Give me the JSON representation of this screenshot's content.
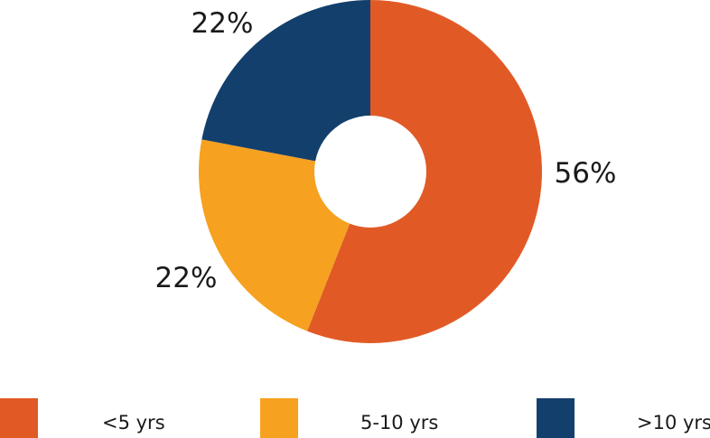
{
  "chart_data": {
    "type": "donut",
    "title": "",
    "categories": [
      "<5 yrs",
      "5-10 yrs",
      ">10 yrs"
    ],
    "values": [
      56,
      22,
      22
    ],
    "value_labels": [
      "56%",
      "22%",
      "22%"
    ],
    "colors": [
      "#e15a26",
      "#f6a11f",
      "#133f6c"
    ],
    "legend": {
      "placement": "bottom",
      "entries": [
        "<5 yrs",
        "5-10 yrs",
        ">10 yrs"
      ]
    }
  }
}
